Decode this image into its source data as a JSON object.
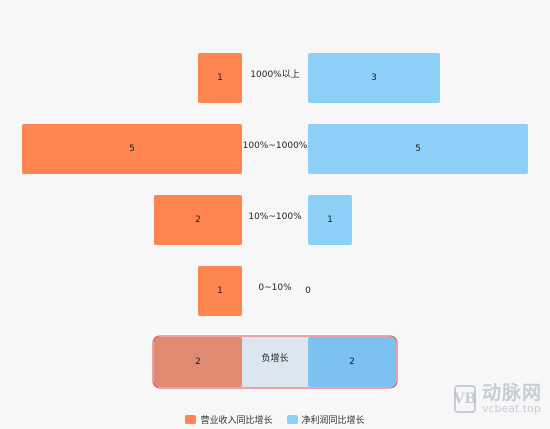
{
  "chart_data": {
    "type": "bar",
    "orientation": "horizontal-butterfly",
    "categories": [
      "1000%以上",
      "100%~1000%",
      "10%~100%",
      "0~10%",
      "负增长"
    ],
    "series": [
      {
        "name": "营业收入同比增长",
        "values": [
          1,
          5,
          2,
          1,
          2
        ],
        "color": "#ff8550"
      },
      {
        "name": "净利润同比增长",
        "values": [
          3,
          5,
          1,
          0,
          2
        ],
        "color": "#8ccff7"
      }
    ],
    "highlight": {
      "category": "负增长",
      "border_color": "#e0485a",
      "left_color": "#e08a72",
      "right_color": "#7bc2f2",
      "band_color": "#dbe6ef"
    },
    "max_value": 5,
    "grid": false,
    "legend_position": "bottom"
  },
  "watermark": {
    "logo": "VB",
    "name": "动脉网",
    "url": "vcbeat.top"
  }
}
